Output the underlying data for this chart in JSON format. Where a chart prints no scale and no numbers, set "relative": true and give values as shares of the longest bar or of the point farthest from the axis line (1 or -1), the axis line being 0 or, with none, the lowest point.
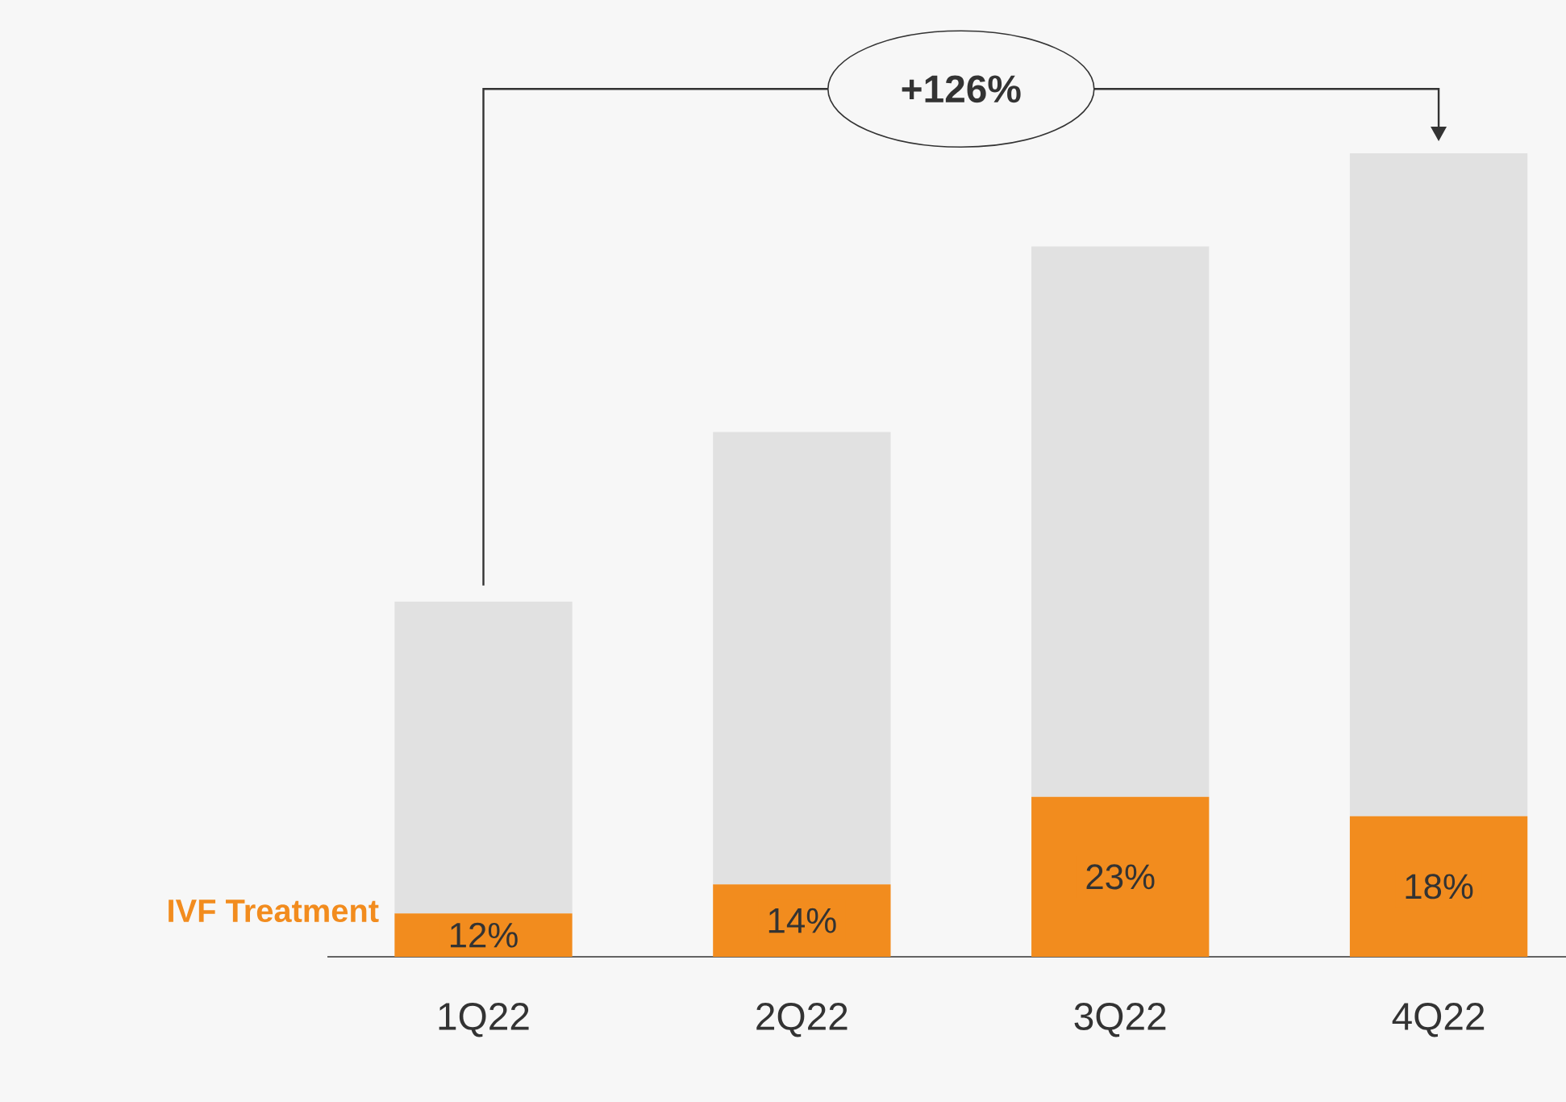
{
  "chart_data": {
    "type": "bar",
    "stacked": true,
    "relative": true,
    "categories": [
      "1Q22",
      "2Q22",
      "3Q22",
      "4Q22"
    ],
    "series": [
      {
        "name": "IVF Treatment",
        "color": "#f28c1e",
        "values": [
          0.054,
          0.09,
          0.199,
          0.175
        ]
      },
      {
        "color": "#e1e1e1",
        "values": [
          0.388,
          0.563,
          0.685,
          0.825
        ]
      }
    ],
    "annotations": [
      "+126%",
      "12%",
      "14%",
      "23%",
      "18%"
    ]
  }
}
